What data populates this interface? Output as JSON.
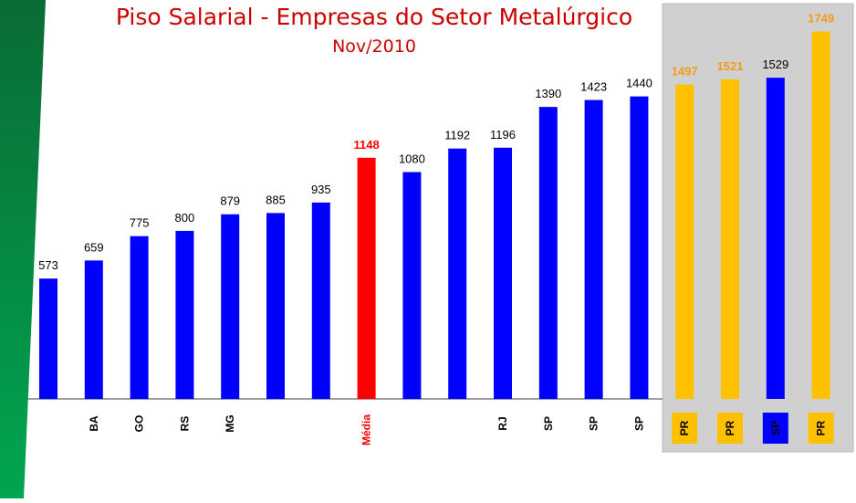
{
  "chart_data": {
    "type": "bar",
    "title": "Piso Salarial - Empresas do Setor Metalúrgico",
    "subtitle": "Nov/2010",
    "xlabel": "",
    "ylabel": "",
    "ylim": [
      0,
      1760
    ],
    "grid": false,
    "legend": "none",
    "categories": [
      "",
      "BA",
      "GO",
      "RS",
      "MG",
      "",
      "",
      "Média",
      "",
      "",
      "RJ",
      "SP",
      "SP",
      "SP",
      "PR",
      "PR",
      "SP",
      "PR"
    ],
    "values": [
      573,
      659,
      775,
      800,
      879,
      885,
      935,
      1148,
      1080,
      1192,
      1196,
      1390,
      1423,
      1440,
      1497,
      1521,
      1529,
      1749
    ],
    "bar_colors": [
      "#0000ff",
      "#0000ff",
      "#0000ff",
      "#0000ff",
      "#0000ff",
      "#0000ff",
      "#0000ff",
      "#ff0000",
      "#0000ff",
      "#0000ff",
      "#0000ff",
      "#0000ff",
      "#0000ff",
      "#0000ff",
      "#ffc000",
      "#ffc000",
      "#0000ff",
      "#ffc000"
    ],
    "highlighted_group": [
      14,
      15,
      16,
      17
    ]
  },
  "colors": {
    "normal": "#0000ff",
    "average": "#ff0000",
    "highlight": "#ffc000",
    "highlight_label": "#f59a1a",
    "panel": "#d0d0d0",
    "accent_green": "#009a44"
  }
}
